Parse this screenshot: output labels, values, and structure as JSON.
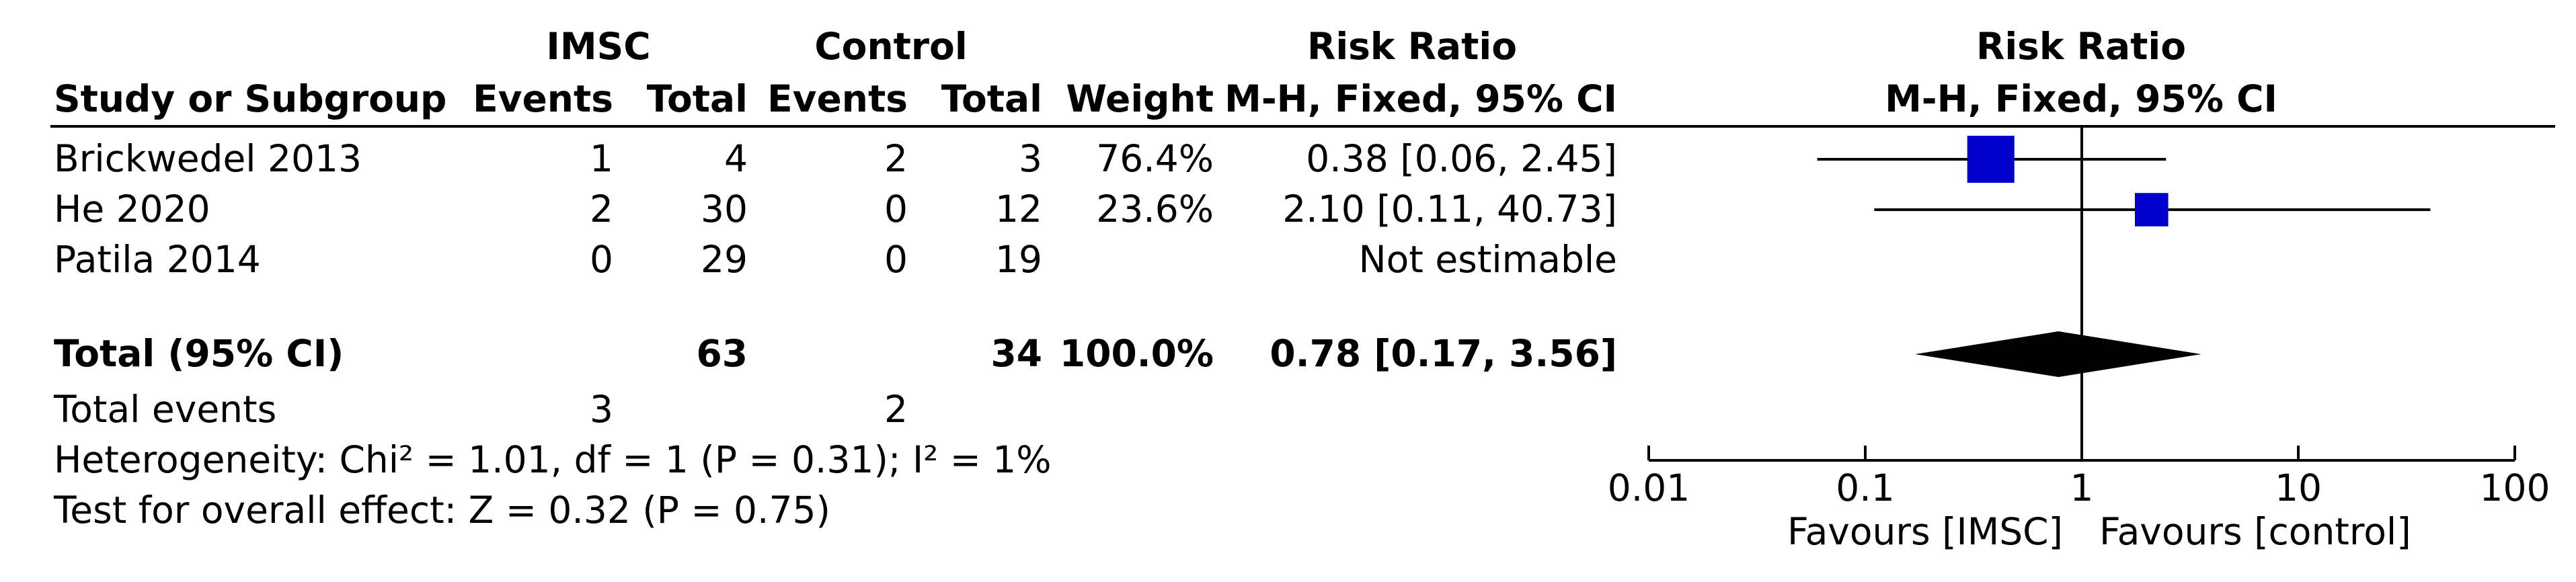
{
  "headers": {
    "group1": "IMSC",
    "group2": "Control",
    "rr_top": "Risk Ratio",
    "rr_method": "M-H, Fixed, 95% CI",
    "plot_top": "Risk Ratio",
    "plot_method": "M-H, Fixed, 95% CI",
    "study": "Study or Subgroup",
    "events": "Events",
    "total": "Total",
    "weight": "Weight"
  },
  "studies": [
    {
      "name": "Brickwedel 2013",
      "e1": "1",
      "t1": "4",
      "e2": "2",
      "t2": "3",
      "weight": "76.4%",
      "ci": "0.38 [0.06, 2.45]"
    },
    {
      "name": "He 2020",
      "e1": "2",
      "t1": "30",
      "e2": "0",
      "t2": "12",
      "weight": "23.6%",
      "ci": "2.10 [0.11, 40.73]"
    },
    {
      "name": "Patila 2014",
      "e1": "0",
      "t1": "29",
      "e2": "0",
      "t2": "19",
      "weight": "",
      "ci": "Not estimable"
    }
  ],
  "total": {
    "label": "Total (95% CI)",
    "t1": "63",
    "t2": "34",
    "weight": "100.0%",
    "ci": "0.78 [0.17, 3.56]"
  },
  "events_row": {
    "label": "Total events",
    "e1": "3",
    "e2": "2"
  },
  "heterogeneity": "Heterogeneity: Chi² = 1.01, df = 1 (P = 0.31); I² = 1%",
  "overall_effect": "Test for overall effect: Z = 0.32 (P = 0.75)",
  "favours_left": "Favours [IMSC]",
  "favours_right": "Favours [control]",
  "colors": {
    "marker": "#0000cc",
    "diamond": "#000000",
    "line": "#000000"
  },
  "chart_data": {
    "type": "forest",
    "scale": "log",
    "xlim": [
      0.01,
      100
    ],
    "ticks": [
      0.01,
      0.1,
      1,
      10,
      100
    ],
    "tick_labels": [
      "0.01",
      "0.1",
      "1",
      "10",
      "100"
    ],
    "reference_line": 1,
    "studies": [
      {
        "name": "Brickwedel 2013",
        "rr": 0.38,
        "lower": 0.06,
        "upper": 2.45,
        "weight": 76.4
      },
      {
        "name": "He 2020",
        "rr": 2.1,
        "lower": 0.11,
        "upper": 40.73,
        "weight": 23.6
      },
      {
        "name": "Patila 2014",
        "rr": null,
        "lower": null,
        "upper": null,
        "weight": null
      }
    ],
    "pooled": {
      "rr": 0.78,
      "lower": 0.17,
      "upper": 3.56
    }
  }
}
